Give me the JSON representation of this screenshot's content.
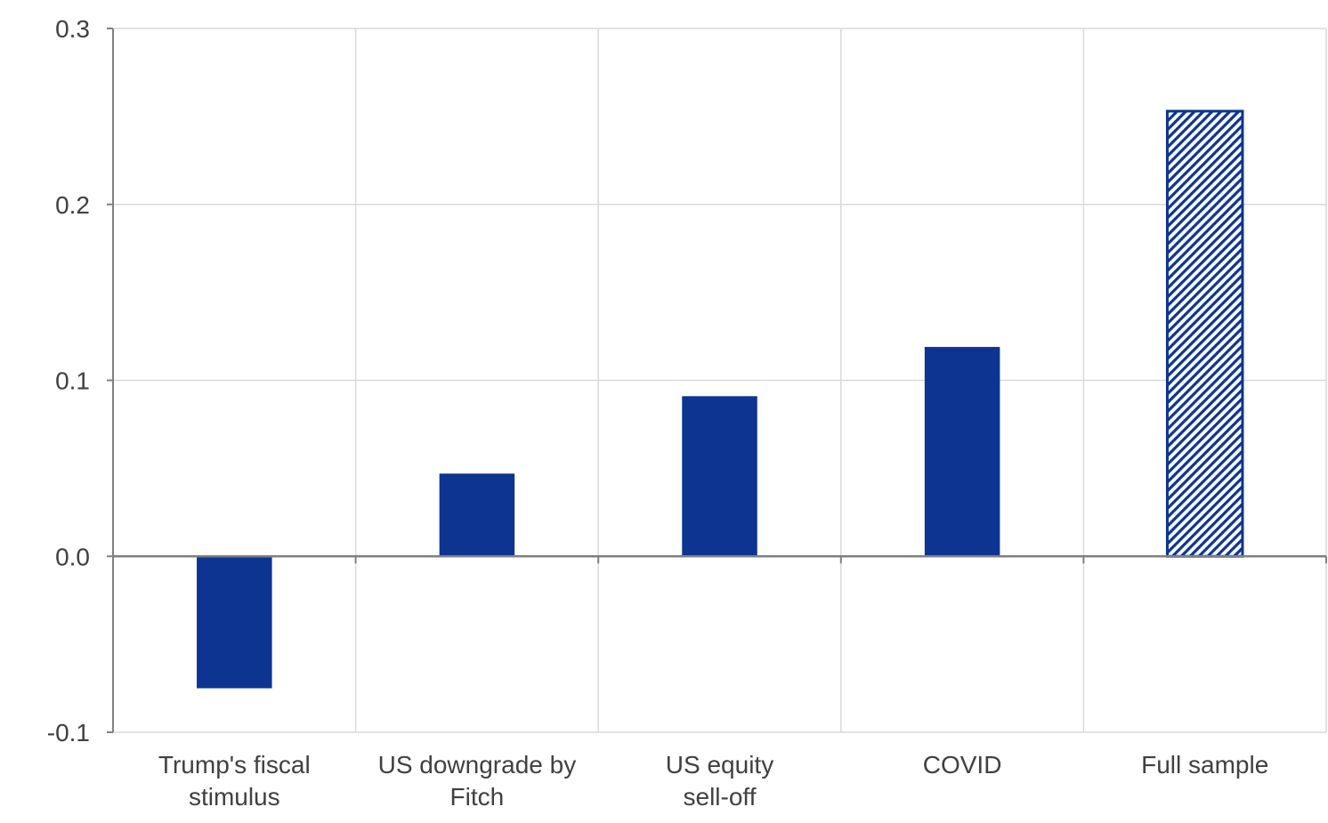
{
  "chart_data": {
    "type": "bar",
    "categories": [
      [
        "Trump's fiscal",
        "stimulus"
      ],
      [
        "US downgrade by",
        "Fitch"
      ],
      [
        "US equity",
        "sell-off"
      ],
      [
        "COVID"
      ],
      [
        "Full sample"
      ]
    ],
    "values": [
      -0.075,
      0.047,
      0.091,
      0.119,
      0.253
    ],
    "hatched": [
      false,
      false,
      false,
      false,
      true
    ],
    "ylim": [
      -0.1,
      0.3
    ],
    "yticks": [
      "-0.1",
      "0.0",
      "0.1",
      "0.2",
      "0.3"
    ],
    "ytick_values": [
      -0.1,
      0.0,
      0.1,
      0.2,
      0.3
    ],
    "grid": true,
    "colors": {
      "bar": "#0d3491",
      "grid": "#d9d9d9",
      "axis": "#808080",
      "text": "#404040"
    }
  }
}
